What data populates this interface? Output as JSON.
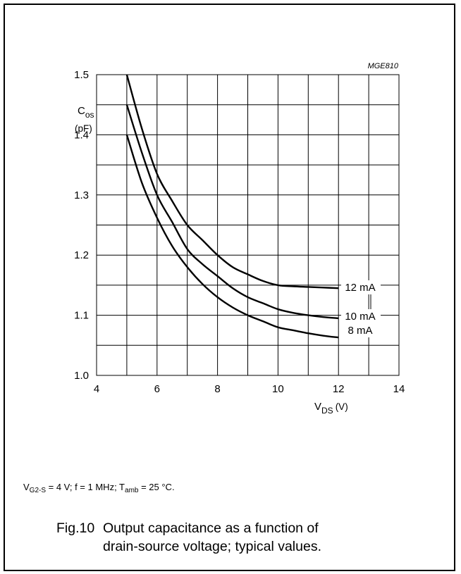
{
  "chart_data": {
    "type": "line",
    "drawing_code": "MGE810",
    "xlim": [
      4,
      14
    ],
    "ylim": [
      1.0,
      1.5
    ],
    "x_ticks": [
      "4",
      "6",
      "8",
      "10",
      "12",
      "14"
    ],
    "y_ticks": [
      "1.0",
      "1.1",
      "1.2",
      "1.3",
      "1.4",
      "1.5"
    ],
    "xlabel_main": "V",
    "xlabel_sub": "DS",
    "xlabel_unit": "(V)",
    "ylabel_main": "C",
    "ylabel_sub": "os",
    "ylabel_unit": "(pF)",
    "grid": true,
    "series": [
      {
        "name": "12 mA",
        "x": [
          5,
          5.5,
          6,
          6.5,
          7,
          7.5,
          8,
          8.5,
          9,
          9.5,
          10,
          10.5,
          11,
          11.5,
          12
        ],
        "y": [
          1.5,
          1.41,
          1.335,
          1.29,
          1.25,
          1.225,
          1.2,
          1.18,
          1.168,
          1.157,
          1.15,
          1.148,
          1.147,
          1.146,
          1.145
        ]
      },
      {
        "name": "10 mA",
        "x": [
          5,
          5.5,
          6,
          6.5,
          7,
          7.5,
          8,
          8.5,
          9,
          9.5,
          10,
          10.5,
          11,
          11.5,
          12
        ],
        "y": [
          1.45,
          1.37,
          1.3,
          1.255,
          1.21,
          1.185,
          1.165,
          1.145,
          1.13,
          1.12,
          1.11,
          1.104,
          1.1,
          1.097,
          1.095
        ]
      },
      {
        "name": "8 mA",
        "x": [
          5,
          5.5,
          6,
          6.5,
          7,
          7.5,
          8,
          8.5,
          9,
          9.5,
          10,
          10.5,
          11,
          11.5,
          12
        ],
        "y": [
          1.4,
          1.32,
          1.262,
          1.215,
          1.18,
          1.152,
          1.13,
          1.113,
          1.1,
          1.09,
          1.08,
          1.075,
          1.07,
          1.066,
          1.063
        ]
      }
    ]
  },
  "conditions": {
    "v_main": "V",
    "v_sub": "G2-S",
    "v_rest": " = 4 V; f = 1 MHz; T",
    "t_sub": "amb",
    "t_rest": " = 25 °C."
  },
  "caption": {
    "number": "Fig.10",
    "line1": "Output capacitance as a function of",
    "line2": "drain-source voltage; typical values."
  }
}
